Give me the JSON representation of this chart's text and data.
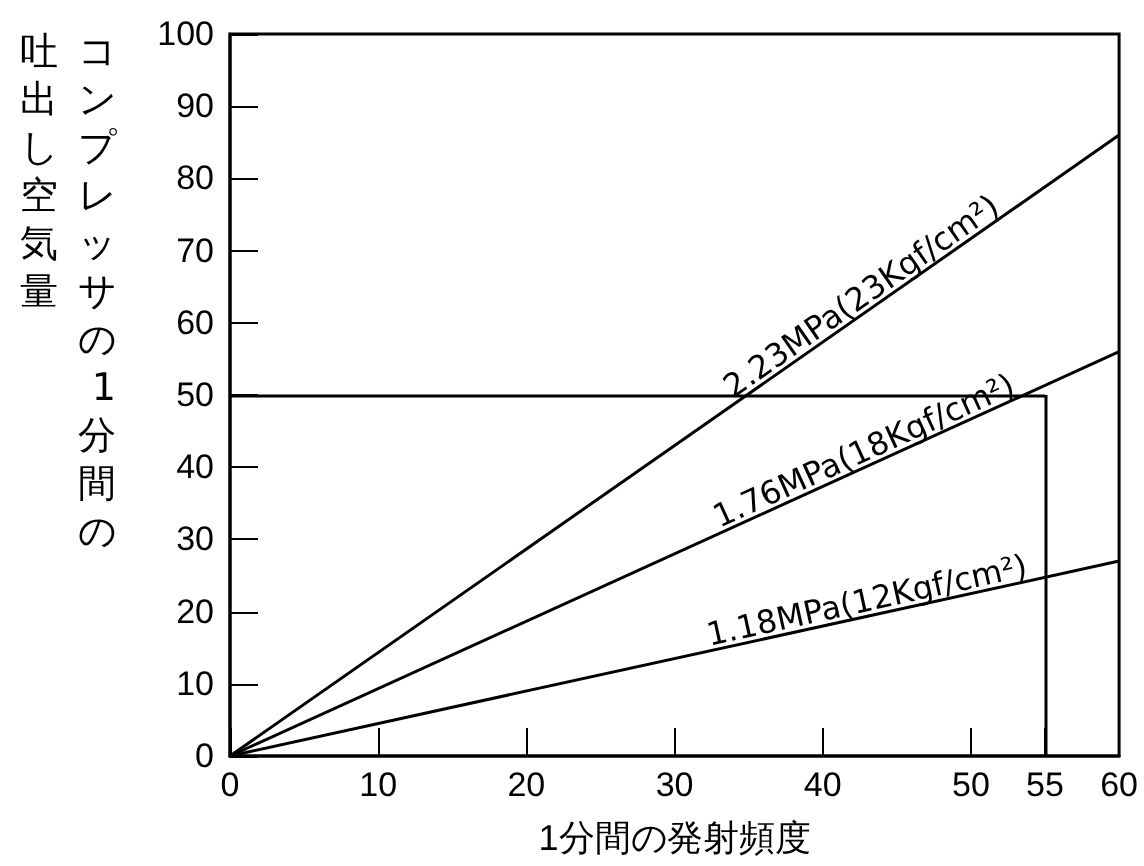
{
  "chart_data": {
    "type": "line",
    "xlabel": "1分間の発射頻度",
    "ylabel": "コンプレッサの1分間の吐出し空気量",
    "x": [
      0,
      60
    ],
    "series": [
      {
        "name": "2.23MPa(23Kgf/cm²)",
        "color": "#000000",
        "values": [
          0,
          86
        ]
      },
      {
        "name": "1.76MPa(18Kgf/cm²)",
        "color": "#000000",
        "values": [
          0,
          56
        ]
      },
      {
        "name": "1.18MPa(12Kgf/cm²)",
        "color": "#000000",
        "values": [
          0,
          27
        ]
      }
    ],
    "xlim": [
      0,
      60
    ],
    "xticks": [
      0,
      10,
      20,
      30,
      40,
      50,
      55,
      60
    ],
    "ylim": [
      0,
      100
    ],
    "yticks": [
      0,
      10,
      20,
      30,
      40,
      50,
      60,
      70,
      80,
      90,
      100
    ],
    "ref_lines": [
      {
        "axis": "y",
        "value": 50,
        "color": "#000000",
        "line_style": "solid"
      },
      {
        "axis": "x",
        "value": 55,
        "color": "#000000",
        "line_style": "solid"
      }
    ],
    "grid": false,
    "legend": false,
    "marker": "none",
    "line_style": "solid"
  }
}
